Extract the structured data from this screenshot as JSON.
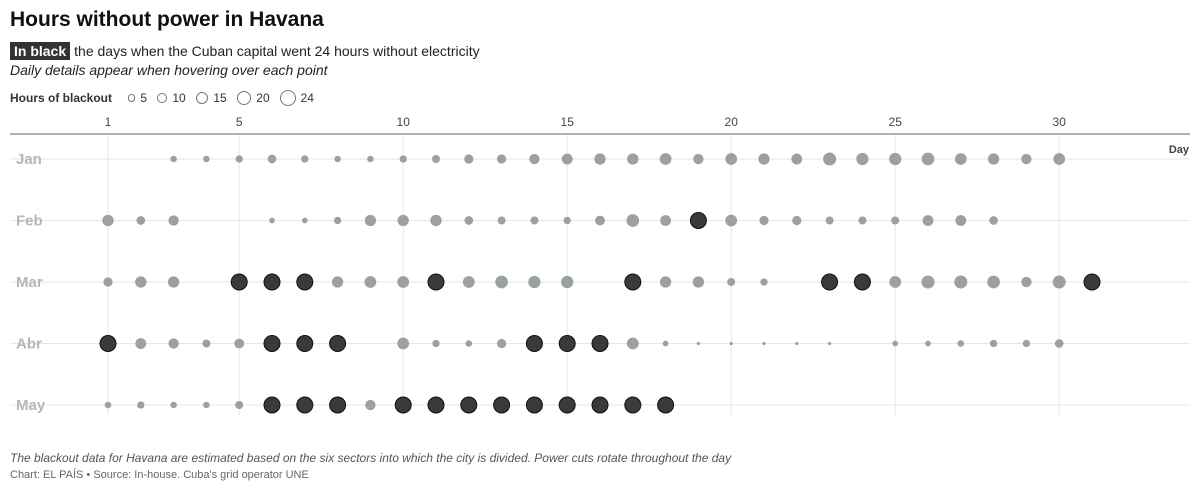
{
  "title": "Hours without power in Havana",
  "subtitle": {
    "highlight": "In black",
    "text": "the days when the Cuban capital went 24 hours without electricity"
  },
  "note": "Daily details appear when hovering over each point",
  "legend": {
    "title": "Hours of blackout",
    "items": [
      {
        "label": "5",
        "value": 5
      },
      {
        "label": "10",
        "value": 10
      },
      {
        "label": "15",
        "value": 15
      },
      {
        "label": "20",
        "value": 20
      },
      {
        "label": "24",
        "value": 24
      }
    ]
  },
  "footnote": "The blackout data for Havana are estimated based on the six sectors into which the city is divided. Power cuts rotate throughout the day",
  "credits": "Chart: EL PAÍS • Source: In-house. Cuba's grid operator UNE",
  "colors": {
    "normal_fill": "#9aa19f",
    "full_day_fill": "#3a3a3a",
    "full_day_stroke": "#111111",
    "grid": "#e6e6e6",
    "axis": "#666666",
    "month_label": "#b3b8b6"
  },
  "chart_data": {
    "type": "scatter",
    "xlabel": "Day",
    "x_ticks": [
      1,
      5,
      10,
      15,
      20,
      25,
      30
    ],
    "xlim": [
      1,
      31
    ],
    "size_variable": "Hours of blackout",
    "full_day_hours": 24,
    "series": [
      {
        "name": "Jan",
        "days": [
          3,
          4,
          5,
          6,
          7,
          8,
          9,
          10,
          11,
          12,
          13,
          14,
          15,
          16,
          17,
          18,
          19,
          20,
          21,
          22,
          23,
          24,
          25,
          26,
          27,
          28,
          29,
          30
        ],
        "hours": [
          4,
          4,
          5,
          7,
          5,
          4,
          4,
          5,
          6,
          8,
          8,
          10,
          11,
          12,
          12,
          13,
          10,
          13,
          12,
          11,
          16,
          14,
          14,
          15,
          13,
          12,
          10,
          13
        ]
      },
      {
        "name": "Feb",
        "days": [
          1,
          2,
          3,
          6,
          7,
          8,
          9,
          10,
          11,
          12,
          13,
          14,
          15,
          16,
          17,
          18,
          19,
          20,
          21,
          22,
          23,
          24,
          25,
          26,
          27,
          28
        ],
        "hours": [
          12,
          7,
          10,
          3,
          3,
          5,
          12,
          12,
          12,
          7,
          6,
          6,
          5,
          9,
          15,
          11,
          24,
          13,
          8,
          8,
          6,
          6,
          6,
          11,
          11,
          7
        ],
        "full_day_days": [
          19
        ]
      },
      {
        "name": "Mar",
        "days": [
          1,
          2,
          3,
          5,
          6,
          7,
          8,
          9,
          10,
          11,
          12,
          13,
          14,
          15,
          17,
          18,
          19,
          20,
          21,
          23,
          24,
          25,
          26,
          27,
          28,
          29,
          30,
          31
        ],
        "hours": [
          8,
          12,
          12,
          24,
          24,
          24,
          12,
          13,
          13,
          24,
          13,
          15,
          14,
          14,
          24,
          12,
          12,
          6,
          5,
          24,
          24,
          13,
          16,
          16,
          15,
          10,
          16,
          24
        ],
        "full_day_days": [
          5,
          6,
          7,
          11,
          17,
          23,
          24,
          31
        ]
      },
      {
        "name": "Abr",
        "days": [
          1,
          2,
          3,
          4,
          5,
          6,
          7,
          8,
          10,
          11,
          12,
          13,
          14,
          15,
          16,
          17,
          18,
          19,
          20,
          21,
          22,
          23,
          25,
          26,
          27,
          28,
          29,
          30
        ],
        "hours": [
          24,
          11,
          10,
          6,
          9,
          24,
          24,
          24,
          13,
          5,
          4,
          8,
          24,
          24,
          24,
          13,
          3,
          1,
          1,
          1,
          1,
          1,
          3,
          3,
          4,
          5,
          5,
          7
        ],
        "full_day_days": [
          1,
          6,
          7,
          8,
          14,
          15,
          16
        ]
      },
      {
        "name": "May",
        "days": [
          1,
          2,
          3,
          4,
          5,
          6,
          7,
          8,
          9,
          10,
          11,
          12,
          13,
          14,
          15,
          16,
          17,
          18
        ],
        "hours": [
          4,
          5,
          4,
          4,
          6,
          24,
          24,
          24,
          10,
          24,
          24,
          24,
          24,
          24,
          24,
          24,
          24,
          24
        ],
        "full_day_days": [
          6,
          7,
          8,
          10,
          11,
          12,
          13,
          14,
          15,
          16,
          17,
          18
        ]
      }
    ]
  }
}
